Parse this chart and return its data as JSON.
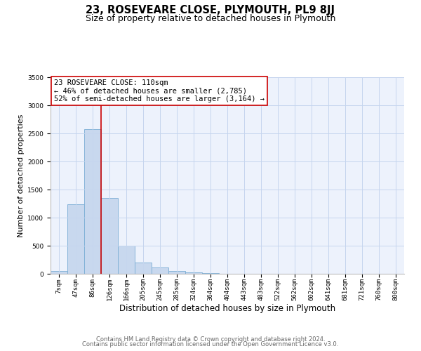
{
  "title": "23, ROSEVEARE CLOSE, PLYMOUTH, PL9 8JJ",
  "subtitle": "Size of property relative to detached houses in Plymouth",
  "xlabel": "Distribution of detached houses by size in Plymouth",
  "ylabel": "Number of detached properties",
  "bar_labels": [
    "7sqm",
    "47sqm",
    "86sqm",
    "126sqm",
    "166sqm",
    "205sqm",
    "245sqm",
    "285sqm",
    "324sqm",
    "364sqm",
    "404sqm",
    "443sqm",
    "483sqm",
    "522sqm",
    "562sqm",
    "602sqm",
    "641sqm",
    "681sqm",
    "721sqm",
    "760sqm",
    "800sqm"
  ],
  "bar_values": [
    50,
    1240,
    2570,
    1350,
    500,
    200,
    110,
    50,
    20,
    10,
    5,
    3,
    2,
    0,
    0,
    0,
    0,
    0,
    0,
    0,
    0
  ],
  "bar_color": "#c8d8ee",
  "bar_edge_color": "#7aadd4",
  "vline_x": 2.5,
  "vline_color": "#cc0000",
  "ylim": [
    0,
    3500
  ],
  "yticks": [
    0,
    500,
    1000,
    1500,
    2000,
    2500,
    3000,
    3500
  ],
  "annotation_title": "23 ROSEVEARE CLOSE: 110sqm",
  "annotation_line1": "← 46% of detached houses are smaller (2,785)",
  "annotation_line2": "52% of semi-detached houses are larger (3,164) →",
  "annotation_box_color": "#ffffff",
  "annotation_box_edge": "#cc0000",
  "footer1": "Contains HM Land Registry data © Crown copyright and database right 2024.",
  "footer2": "Contains public sector information licensed under the Open Government Licence v3.0.",
  "bg_color": "#edf2fc",
  "grid_color": "#c5d5ee",
  "title_fontsize": 10.5,
  "subtitle_fontsize": 9,
  "xlabel_fontsize": 8.5,
  "ylabel_fontsize": 8,
  "tick_fontsize": 6.5,
  "footer_fontsize": 6,
  "annot_fontsize": 7.5
}
